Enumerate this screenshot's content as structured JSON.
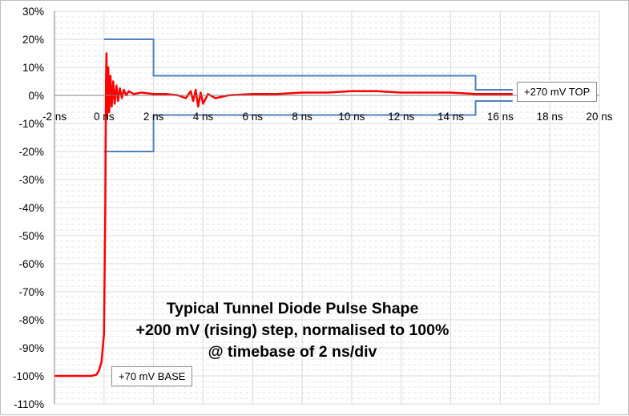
{
  "chart_data": {
    "type": "line",
    "title": "",
    "xlabel": "",
    "ylabel": "",
    "xlim": [
      -2,
      20
    ],
    "ylim": [
      -110,
      30
    ],
    "x_ticks": [
      -2,
      0,
      2,
      4,
      6,
      8,
      10,
      12,
      14,
      16,
      18,
      20
    ],
    "x_tick_labels": [
      "-2 ns",
      "0 ns",
      "2 ns",
      "4 ns",
      "6 ns",
      "8 ns",
      "10 ns",
      "12 ns",
      "14 ns",
      "16 ns",
      "18 ns",
      "20 ns"
    ],
    "y_ticks": [
      30,
      20,
      10,
      0,
      -10,
      -20,
      -30,
      -40,
      -50,
      -60,
      -70,
      -80,
      -90,
      -100,
      -110
    ],
    "y_tick_labels": [
      "30%",
      "20%",
      "10%",
      "0%",
      "-10%",
      "-20%",
      "-30%",
      "-40%",
      "-50%",
      "-60%",
      "-70%",
      "-80%",
      "-90%",
      "-100%",
      "-110%"
    ],
    "grid": {
      "horizontal_major": true,
      "horizontal_minor_dashed": true,
      "vertical": true
    },
    "legend": "none",
    "colors": {
      "pulse": "#ff0000",
      "mask": "#4f81bd",
      "grid": "#d9d9d9",
      "axis": "#808080"
    },
    "series": [
      {
        "role": "pulse",
        "points": [
          [
            -2,
            -100
          ],
          [
            -1,
            -100
          ],
          [
            -0.5,
            -100
          ],
          [
            -0.3,
            -99.5
          ],
          [
            -0.2,
            -98
          ],
          [
            -0.1,
            -95
          ],
          [
            0,
            -85
          ],
          [
            0.05,
            -40
          ],
          [
            0.08,
            5
          ],
          [
            0.1,
            15
          ],
          [
            0.13,
            -8
          ],
          [
            0.17,
            10
          ],
          [
            0.21,
            -6
          ],
          [
            0.26,
            7
          ],
          [
            0.31,
            -4
          ],
          [
            0.37,
            5
          ],
          [
            0.43,
            -3
          ],
          [
            0.5,
            3.5
          ],
          [
            0.57,
            -2
          ],
          [
            0.64,
            2.5
          ],
          [
            0.72,
            -1
          ],
          [
            0.8,
            2
          ],
          [
            0.9,
            0
          ],
          [
            1,
            1.5
          ],
          [
            1.2,
            0.5
          ],
          [
            1.5,
            1
          ],
          [
            2,
            0.5
          ],
          [
            2.5,
            0.5
          ],
          [
            3,
            0
          ],
          [
            3.3,
            -1
          ],
          [
            3.5,
            1.5
          ],
          [
            3.6,
            -2
          ],
          [
            3.7,
            2
          ],
          [
            3.8,
            -4
          ],
          [
            3.9,
            1
          ],
          [
            4,
            -3
          ],
          [
            4.2,
            0.5
          ],
          [
            4.5,
            -1
          ],
          [
            5,
            0
          ],
          [
            6,
            0.5
          ],
          [
            7,
            0.5
          ],
          [
            8,
            1
          ],
          [
            9,
            1
          ],
          [
            10,
            1.5
          ],
          [
            11,
            1.5
          ],
          [
            12,
            1
          ],
          [
            13,
            1
          ],
          [
            14,
            1
          ],
          [
            15,
            0.5
          ],
          [
            16,
            0.5
          ],
          [
            16.5,
            0.5
          ]
        ]
      },
      {
        "role": "mask-upper",
        "points": [
          [
            0,
            20
          ],
          [
            2,
            20
          ],
          [
            2,
            7
          ],
          [
            15,
            7
          ],
          [
            15,
            2
          ],
          [
            16.5,
            2
          ]
        ]
      },
      {
        "role": "mask-lower",
        "points": [
          [
            0,
            -20
          ],
          [
            2,
            -20
          ],
          [
            2,
            -7
          ],
          [
            15,
            -7
          ],
          [
            15,
            -2
          ],
          [
            16.5,
            -2
          ]
        ]
      }
    ],
    "annotations": [
      {
        "text": "+270 mV TOP",
        "anchor_x": 16.5,
        "anchor_y": 2
      },
      {
        "text": "+70 mV BASE",
        "anchor_x": 0.5,
        "anchor_y": -100
      }
    ],
    "caption_lines": [
      "Typical Tunnel Diode Pulse Shape",
      "+200 mV (rising) step, normalised to 100%",
      "@ timebase of 2 ns/div"
    ]
  }
}
